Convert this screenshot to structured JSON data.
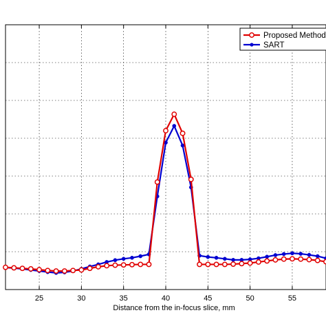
{
  "chart_data": {
    "type": "line",
    "xlabel": "Distance from the in-focus slice, mm",
    "ylabel": "",
    "xlim": [
      21,
      59
    ],
    "ylim": [
      0,
      1
    ],
    "xticks": [
      25,
      30,
      35,
      40,
      45,
      50,
      55
    ],
    "grid": true,
    "legend": "top-right",
    "series": [
      {
        "name": "Proposed Method",
        "color": "#e00000",
        "x": [
          21,
          22,
          23,
          24,
          25,
          26,
          27,
          28,
          29,
          30,
          31,
          32,
          33,
          34,
          35,
          36,
          37,
          38,
          39,
          40,
          41,
          42,
          43,
          44,
          45,
          46,
          47,
          48,
          49,
          50,
          51,
          52,
          53,
          54,
          55,
          56,
          57,
          58,
          59
        ],
        "values": [
          0.084,
          0.082,
          0.08,
          0.078,
          0.075,
          0.072,
          0.07,
          0.07,
          0.072,
          0.074,
          0.08,
          0.086,
          0.09,
          0.092,
          0.093,
          0.094,
          0.095,
          0.095,
          0.406,
          0.6,
          0.662,
          0.59,
          0.416,
          0.095,
          0.095,
          0.095,
          0.095,
          0.096,
          0.098,
          0.1,
          0.104,
          0.108,
          0.112,
          0.115,
          0.116,
          0.115,
          0.113,
          0.11,
          0.105
        ]
      },
      {
        "name": "SART",
        "color": "#0000d0",
        "x": [
          21,
          22,
          23,
          24,
          25,
          26,
          27,
          28,
          29,
          30,
          31,
          32,
          33,
          34,
          35,
          36,
          37,
          38,
          39,
          40,
          41,
          42,
          43,
          44,
          45,
          46,
          47,
          48,
          49,
          50,
          51,
          52,
          53,
          54,
          55,
          56,
          57,
          58,
          59
        ],
        "values": [
          0.083,
          0.081,
          0.078,
          0.074,
          0.07,
          0.066,
          0.063,
          0.065,
          0.07,
          0.078,
          0.087,
          0.095,
          0.104,
          0.111,
          0.116,
          0.12,
          0.126,
          0.133,
          0.352,
          0.555,
          0.618,
          0.544,
          0.386,
          0.128,
          0.123,
          0.12,
          0.116,
          0.112,
          0.112,
          0.114,
          0.118,
          0.124,
          0.13,
          0.134,
          0.137,
          0.135,
          0.131,
          0.126,
          0.118
        ]
      }
    ]
  }
}
